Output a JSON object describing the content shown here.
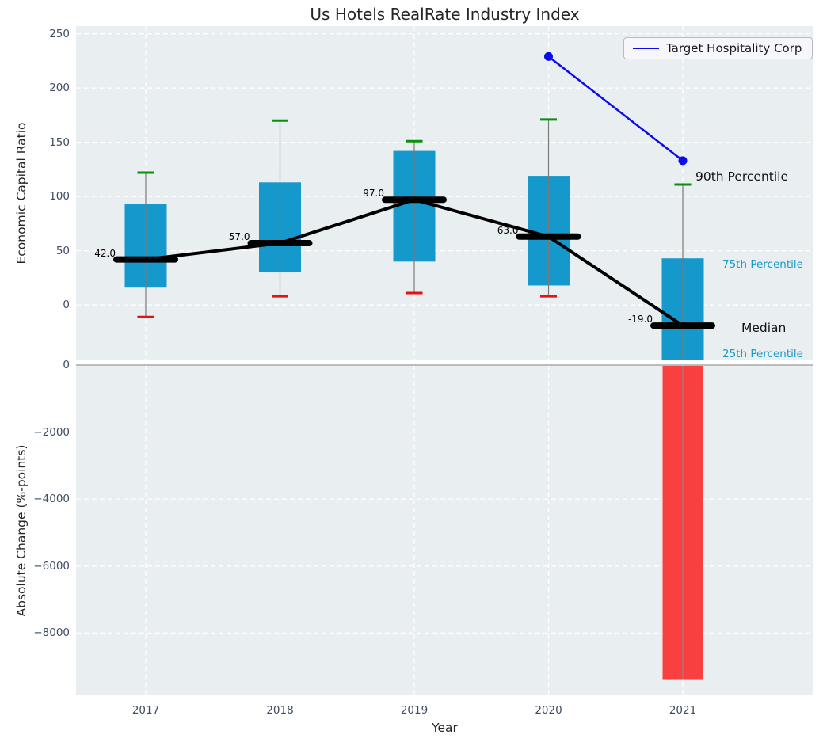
{
  "title": "Us Hotels RealRate Industry Index",
  "legend": {
    "label": "Target Hospitality Corp"
  },
  "annotations": {
    "p90": "90th Percentile",
    "p75": "75th Percentile",
    "median": "Median",
    "p25": "25th Percentile"
  },
  "colors": {
    "plot_bg": "#e9eef1",
    "grid": "#ffffff",
    "box_fill": "#1598cb",
    "cap_high": "#0a8f0a",
    "cap_low": "#ea1010",
    "whisker": "#7a7a7a",
    "median_line": "#000000",
    "trend_line": "#000000",
    "series_line": "#0b0bee",
    "negative_bar": "#f94040",
    "zero_line": "#a8a8a8",
    "tick_text": "#3f4d63",
    "percentile_label_text": "#1b9ac6"
  },
  "chart_data": {
    "type": "box",
    "title": "Us Hotels RealRate Industry Index",
    "xlabel": "Year",
    "categories": [
      "2017",
      "2018",
      "2019",
      "2020",
      "2021"
    ],
    "upper_axis": {
      "ylabel": "Economic Capital Ratio",
      "ylim": [
        -51,
        257
      ],
      "grid": "dashed-white",
      "ticks": [
        {
          "v": 250,
          "label": "250"
        },
        {
          "v": 200,
          "label": "200"
        },
        {
          "v": 150,
          "label": "150"
        },
        {
          "v": 100,
          "label": "100"
        },
        {
          "v": 50,
          "label": "50"
        },
        {
          "v": 0,
          "label": "0"
        }
      ]
    },
    "lower_axis": {
      "ylabel": "Absolute Change (%-points)",
      "ylim": [
        -9860,
        0
      ],
      "grid": "dashed-white",
      "ticks": [
        {
          "v": 0,
          "label": "0"
        },
        {
          "v": -2000,
          "label": "−2000"
        },
        {
          "v": -4000,
          "label": "−4000"
        },
        {
          "v": -6000,
          "label": "−6000"
        },
        {
          "v": -8000,
          "label": "−8000"
        }
      ]
    },
    "boxes": [
      {
        "year": "2017",
        "p90": 122,
        "p75": 93,
        "median": 42,
        "p25": 16,
        "p10": -11,
        "median_label": "42.0"
      },
      {
        "year": "2018",
        "p90": 170,
        "p75": 113,
        "median": 57,
        "p25": 30,
        "p10": 8,
        "median_label": "57.0"
      },
      {
        "year": "2019",
        "p90": 151,
        "p75": 142,
        "median": 97,
        "p25": 40,
        "p10": 11,
        "median_label": "97.0"
      },
      {
        "year": "2020",
        "p90": 171,
        "p75": 119,
        "median": 63,
        "p25": 18,
        "p10": 8,
        "median_label": "63.0"
      },
      {
        "year": "2021",
        "p90": 111,
        "p75": 43,
        "median": -19,
        "p25": -60,
        "p10": null,
        "median_label": "-19.0",
        "clipped_below": true
      }
    ],
    "median_trend": [
      42,
      57,
      97,
      63,
      -19
    ],
    "series": [
      {
        "name": "Target Hospitality Corp",
        "points": [
          {
            "year": "2020",
            "value": 229
          },
          {
            "year": "2021",
            "value": 133
          }
        ]
      }
    ],
    "lower_bars": [
      {
        "year": "2021",
        "value": -9400
      }
    ]
  }
}
